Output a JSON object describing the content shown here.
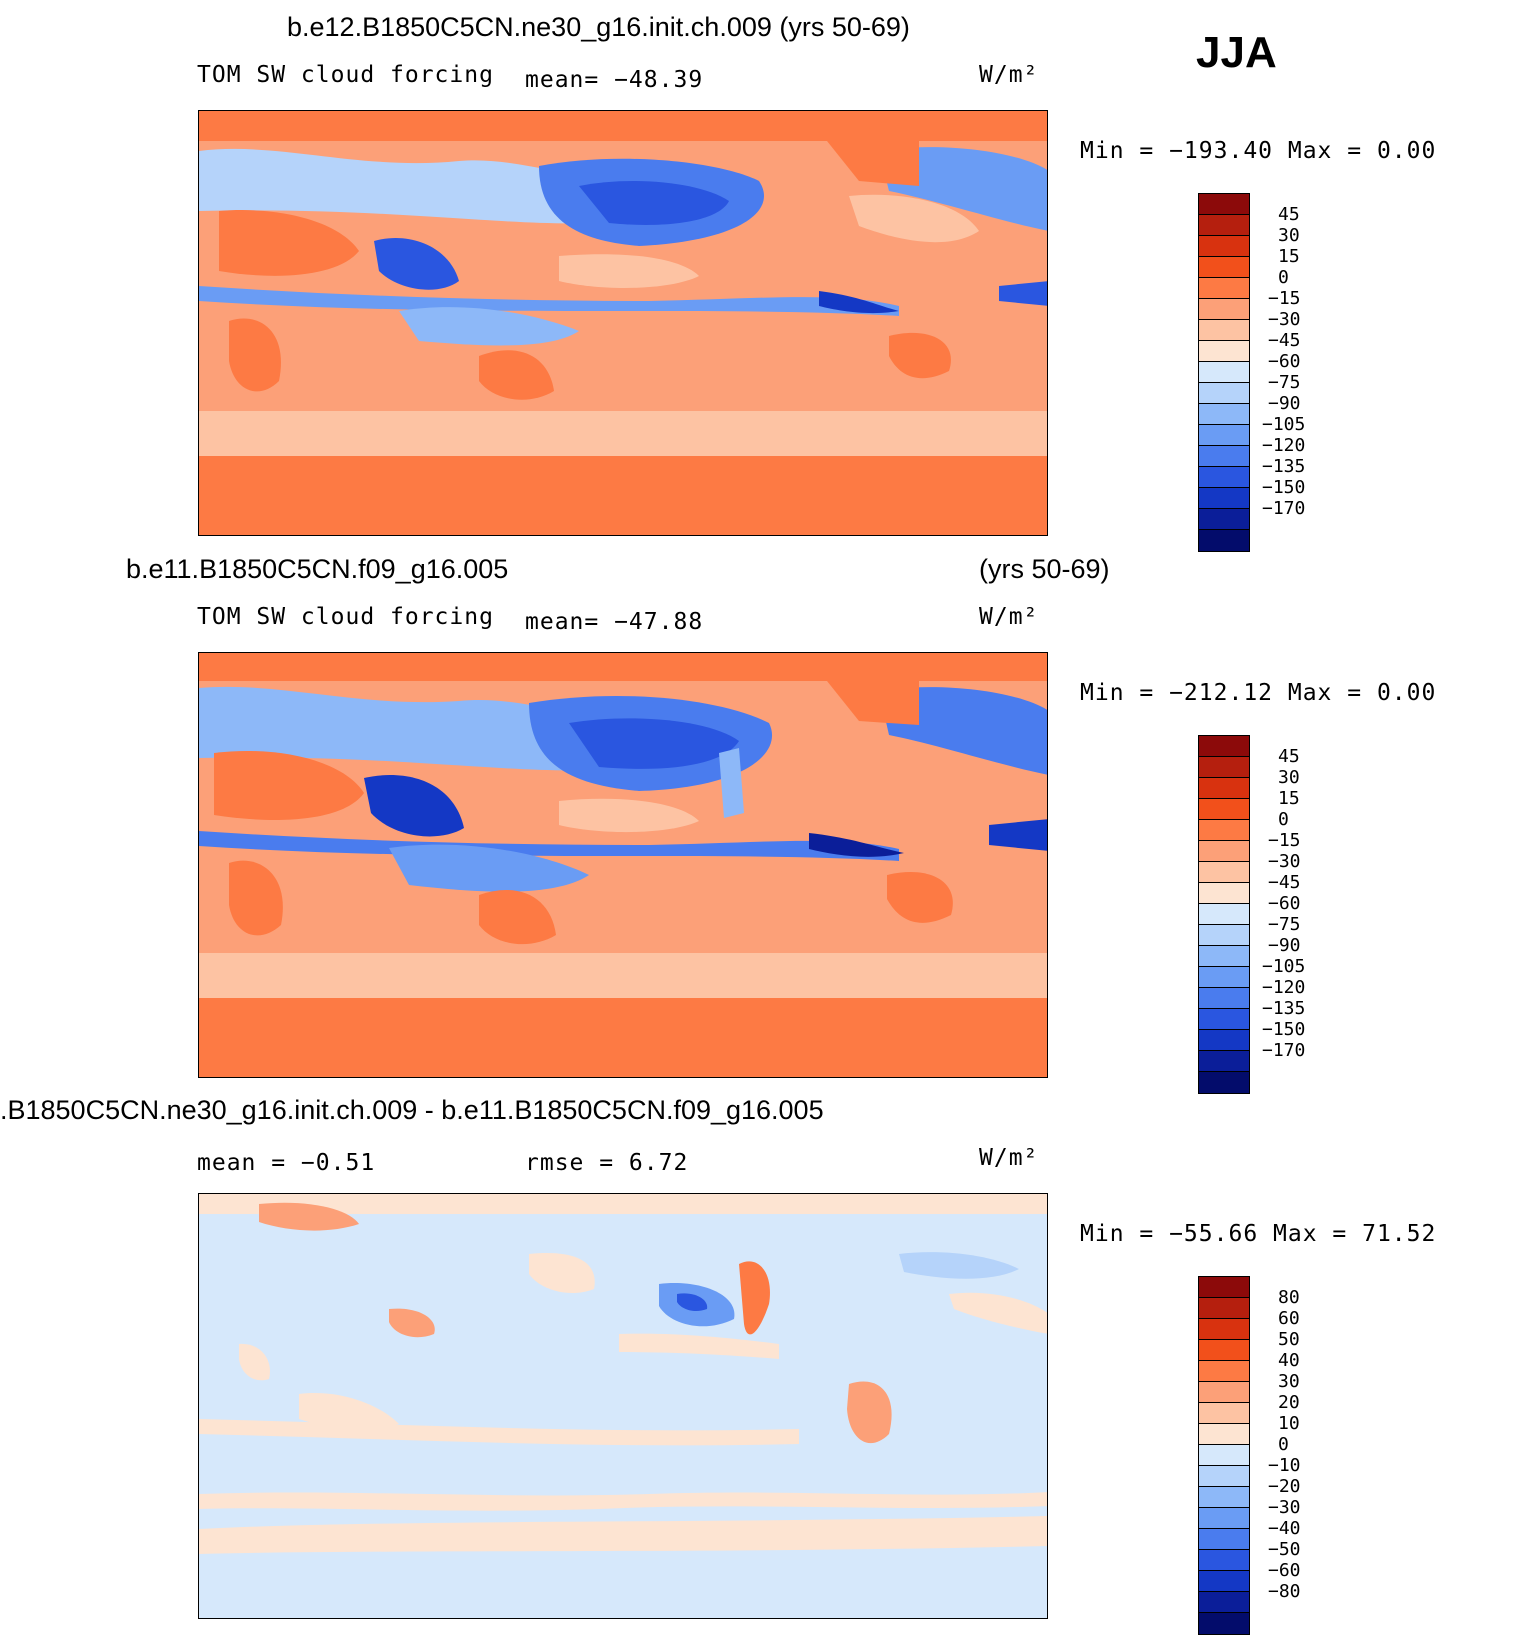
{
  "season": "JJA",
  "panels": [
    {
      "title": "b.e12.B1850C5CN.ne30_g16.init.ch.009 (yrs 50-69)",
      "variable": "TOM SW cloud forcing",
      "stat": "mean= −48.39",
      "units": "W/m²",
      "minmax": "Min = −193.40 Max =    0.00",
      "colorbar_labels": [
        "45",
        "30",
        "15",
        "0",
        "−15",
        "−30",
        "−45",
        "−60",
        "−75",
        "−90",
        "−105",
        "−120",
        "−135",
        "−150",
        "−170"
      ],
      "colorbar_colors": [
        "#8c0a0a",
        "#b51f0e",
        "#d8320f",
        "#f2501b",
        "#fd7a44",
        "#fca078",
        "#fdc3a3",
        "#fde4d2",
        "#d6e8fb",
        "#b5d3fa",
        "#8db8f8",
        "#6a9cf4",
        "#4a7cee",
        "#2a56e0",
        "#1438c5",
        "#0b1e99",
        "#030c6b"
      ]
    },
    {
      "title_left": "b.e11.B1850C5CN.f09_g16.005",
      "title_right": "(yrs 50-69)",
      "variable": "TOM SW cloud forcing",
      "stat": "mean= −47.88",
      "units": "W/m²",
      "minmax": "Min = −212.12 Max =    0.00",
      "colorbar_labels": [
        "45",
        "30",
        "15",
        "0",
        "−15",
        "−30",
        "−45",
        "−60",
        "−75",
        "−90",
        "−105",
        "−120",
        "−135",
        "−150",
        "−170"
      ],
      "colorbar_colors": [
        "#8c0a0a",
        "#b51f0e",
        "#d8320f",
        "#f2501b",
        "#fd7a44",
        "#fca078",
        "#fdc3a3",
        "#fde4d2",
        "#d6e8fb",
        "#b5d3fa",
        "#8db8f8",
        "#6a9cf4",
        "#4a7cee",
        "#2a56e0",
        "#1438c5",
        "#0b1e99",
        "#030c6b"
      ]
    },
    {
      "title": ".B1850C5CN.ne30_g16.init.ch.009 - b.e11.B1850C5CN.f09_g16.005",
      "stat_mean": "mean =   −0.51",
      "stat_rmse": "rmse =    6.72",
      "units": "W/m²",
      "minmax": "Min = −55.66 Max =   71.52",
      "colorbar_labels": [
        "80",
        "60",
        "50",
        "40",
        "30",
        "20",
        "10",
        "0",
        "−10",
        "−20",
        "−30",
        "−40",
        "−50",
        "−60",
        "−80"
      ],
      "colorbar_colors": [
        "#8c0a0a",
        "#b51f0e",
        "#d8320f",
        "#f2501b",
        "#fd7a44",
        "#fca078",
        "#fdc3a3",
        "#fde4d2",
        "#d6e8fb",
        "#b5d3fa",
        "#8db8f8",
        "#6a9cf4",
        "#4a7cee",
        "#2a56e0",
        "#1438c5",
        "#0b1e99",
        "#030c6b"
      ]
    }
  ]
}
